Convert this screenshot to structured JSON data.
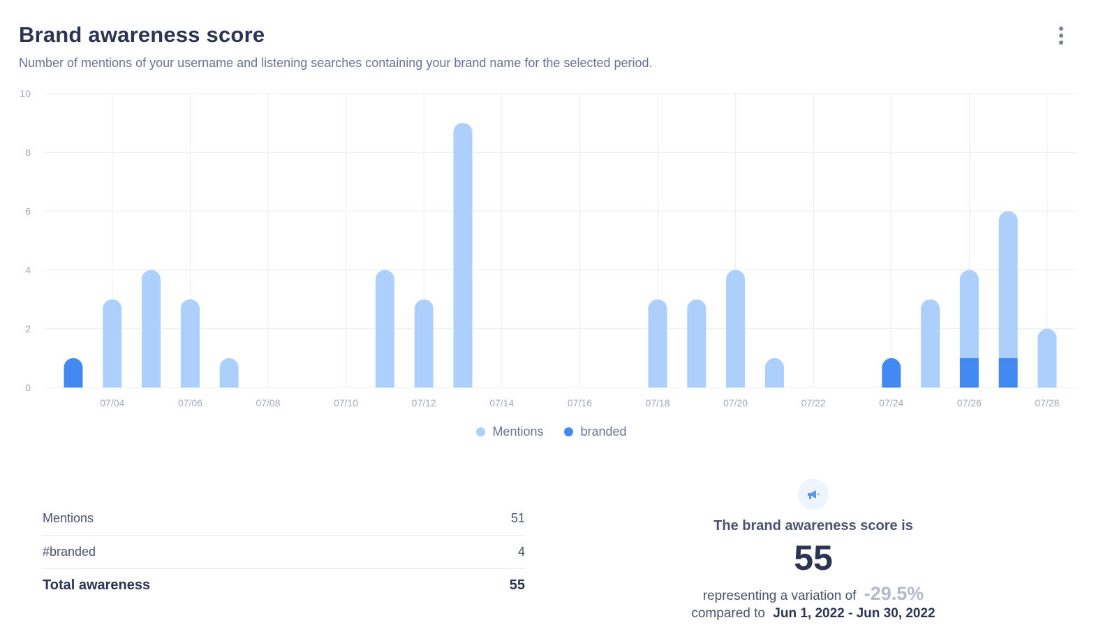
{
  "header": {
    "title": "Brand awareness score",
    "subtitle": "Number of mentions of your username and listening searches containing your brand name for the selected period.",
    "menu_icon": "more-vertical-icon"
  },
  "colors": {
    "mentions": "#acd0fb",
    "branded": "#4289f2",
    "grid": "#e9ecf1",
    "tick_text": "#a4aab9"
  },
  "chart_data": {
    "type": "bar",
    "stacked": true,
    "ylim": [
      0,
      10
    ],
    "y_ticks": [
      0,
      2,
      4,
      6,
      8,
      10
    ],
    "grid": true,
    "legend_position": "bottom-center",
    "categories": [
      "07/03",
      "07/04",
      "07/05",
      "07/06",
      "07/07",
      "07/08",
      "07/09",
      "07/10",
      "07/11",
      "07/12",
      "07/13",
      "07/14",
      "07/15",
      "07/16",
      "07/17",
      "07/18",
      "07/19",
      "07/20",
      "07/21",
      "07/22",
      "07/23",
      "07/24",
      "07/25",
      "07/26",
      "07/27",
      "07/28"
    ],
    "x_tick_labels": [
      "07/04",
      "07/06",
      "07/08",
      "07/10",
      "07/12",
      "07/14",
      "07/16",
      "07/18",
      "07/20",
      "07/22",
      "07/24",
      "07/26",
      "07/28"
    ],
    "series": [
      {
        "name": "branded",
        "values": [
          1,
          0,
          0,
          0,
          0,
          0,
          0,
          0,
          0,
          0,
          0,
          0,
          0,
          0,
          0,
          0,
          0,
          0,
          0,
          0,
          0,
          1,
          0,
          1,
          1,
          0
        ]
      },
      {
        "name": "Mentions",
        "values": [
          0,
          3,
          4,
          3,
          1,
          0,
          0,
          0,
          4,
          3,
          9,
          0,
          0,
          0,
          0,
          3,
          3,
          4,
          1,
          0,
          0,
          0,
          3,
          3,
          5,
          2
        ]
      }
    ]
  },
  "summary": {
    "rows": [
      {
        "label": "Mentions",
        "value": "51"
      },
      {
        "label": "#branded",
        "value": "4"
      }
    ],
    "total": {
      "label": "Total awareness",
      "value": "55"
    }
  },
  "score": {
    "icon": "megaphone-icon",
    "heading": "The brand awareness score is",
    "value": "55",
    "variation_prefix": "representing a variation of",
    "variation_value": "-29.5%",
    "compare_prefix": "compared to",
    "compare_range": "Jun 1, 2022 - Jun 30, 2022"
  }
}
